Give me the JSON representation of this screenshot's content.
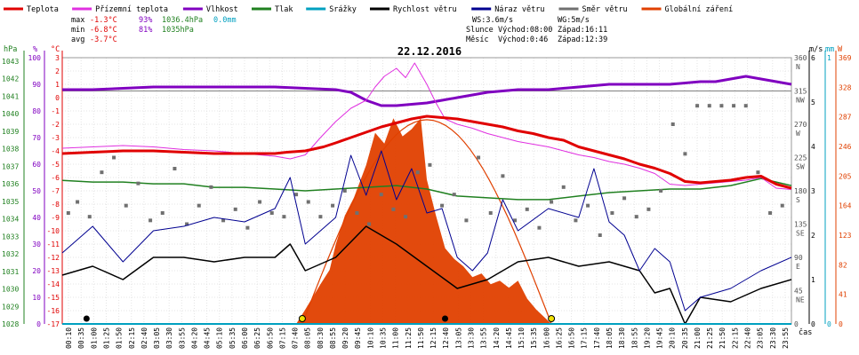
{
  "legend": [
    {
      "label": "Teplota",
      "color": "#e00000"
    },
    {
      "label": "Přízemní teplota",
      "color": "#e030e0"
    },
    {
      "label": "Vlhkost",
      "color": "#8000c0"
    },
    {
      "label": "Tlak",
      "color": "#208020"
    },
    {
      "label": "Srážky",
      "color": "#00a0c0"
    },
    {
      "label": "Rychlost větru",
      "color": "#000000"
    },
    {
      "label": "Náraz větru",
      "color": "#000090"
    },
    {
      "label": "Směr větru",
      "color": "#707070"
    },
    {
      "label": "Globální záření",
      "color": "#e04000"
    }
  ],
  "stats": {
    "max_label": "max",
    "max_temp": "-1.3°C",
    "max_hum": "93%",
    "max_press": "1036.4hPa",
    "precip": "0.0mm",
    "min_label": "min",
    "min_temp": "-6.8°C",
    "min_hum": "81%",
    "min_press": "1035hPa",
    "avg_label": "avg",
    "avg_temp": "-3.7°C"
  },
  "wind_info": {
    "ws": "WS:3.6m/s",
    "wg": "WG:5m/s"
  },
  "sun_info": {
    "label": "Slunce",
    "rise": "Východ:08:00",
    "set": "Západ:16:11"
  },
  "moon_info": {
    "label": "Měsíc",
    "rise": "Východ:0:46",
    "set": "Západ:12:39"
  },
  "date": "22.12.2016",
  "left_axes": {
    "press_unit": "hPa",
    "hum_unit": "%",
    "temp_unit": "°C",
    "press_ticks": [
      "1043",
      "1042",
      "1041",
      "1040",
      "1039",
      "1038",
      "1037",
      "1036",
      "1035",
      "1034",
      "1033",
      "1032",
      "1031",
      "1030",
      "1029",
      "1028"
    ],
    "hum_ticks": [
      "100",
      "90",
      "80",
      "70",
      "60",
      "50",
      "40",
      "30",
      "20",
      "10",
      "0"
    ],
    "temp_ticks": [
      "3",
      "2",
      "1",
      "0",
      "-1",
      "-2",
      "-3",
      "-4",
      "-5",
      "-6",
      "-7",
      "-8",
      "-9",
      "-10",
      "-11",
      "-12",
      "-13",
      "-14",
      "-15",
      "-16",
      "-17"
    ]
  },
  "right_axes": {
    "deg_ticks": [
      "360",
      "315",
      "270",
      "225",
      "180",
      "135",
      "90",
      "45",
      "0"
    ],
    "dir_ticks": [
      "N",
      "NW",
      "W",
      "SW",
      "S",
      "SE",
      "E",
      "NE"
    ],
    "ms_unit": "m/s",
    "mm_unit": "mm",
    "w_unit": "W",
    "ms_ticks": [
      "6",
      "5",
      "4",
      "3",
      "2",
      "1",
      "0"
    ],
    "mm_ticks": [
      "1",
      "0"
    ],
    "w_ticks": [
      "369",
      "328",
      "287",
      "246",
      "205",
      "164",
      "123",
      "82",
      "41",
      "0"
    ],
    "time_label": "čas"
  },
  "chart_data": {
    "type": "line",
    "title": "22.12.2016",
    "x_unit": "time of day (hours)",
    "xlim": [
      0,
      24
    ],
    "x_ticks": [
      "00:10",
      "00:35",
      "01:00",
      "01:25",
      "01:50",
      "02:15",
      "02:40",
      "03:05",
      "03:30",
      "03:55",
      "04:20",
      "04:45",
      "05:10",
      "05:35",
      "06:00",
      "06:25",
      "06:50",
      "07:15",
      "07:40",
      "08:05",
      "08:30",
      "08:55",
      "09:20",
      "09:45",
      "10:10",
      "10:35",
      "11:00",
      "11:25",
      "11:50",
      "12:15",
      "12:40",
      "13:05",
      "13:30",
      "13:55",
      "14:20",
      "14:45",
      "15:10",
      "15:35",
      "16:00",
      "16:25",
      "16:50",
      "17:15",
      "17:40",
      "18:05",
      "18:30",
      "18:55",
      "19:20",
      "19:45",
      "20:10",
      "20:35",
      "21:00",
      "21:25",
      "21:50",
      "22:15",
      "22:40",
      "23:05",
      "23:30",
      "23:55"
    ],
    "temp_ylim": [
      -17,
      3
    ],
    "press_ylim": [
      1028,
      1043.2
    ],
    "hum_ylim": [
      0,
      100
    ],
    "wind_ylim": [
      0,
      6
    ],
    "dir_ylim": [
      0,
      360
    ],
    "rad_ylim": [
      0,
      369
    ],
    "series": [
      {
        "name": "Teplota",
        "axis": "temp",
        "color": "#e00000",
        "width": 3,
        "x": [
          0,
          1,
          2,
          3,
          4,
          5,
          6,
          7,
          7.4,
          8,
          8.6,
          9,
          9.5,
          10,
          10.5,
          11,
          11.5,
          12,
          12.5,
          13,
          13.5,
          14,
          14.5,
          15,
          15.5,
          16,
          16.5,
          17,
          17.5,
          18,
          18.5,
          19,
          19.5,
          20,
          20.5,
          21,
          21.5,
          22,
          22.5,
          23,
          23.5,
          24
        ],
        "y": [
          -4.2,
          -4.1,
          -4,
          -4,
          -4.1,
          -4.2,
          -4.2,
          -4.2,
          -4.1,
          -4,
          -3.7,
          -3.4,
          -3,
          -2.6,
          -2.2,
          -1.9,
          -1.6,
          -1.4,
          -1.5,
          -1.6,
          -1.8,
          -2,
          -2.2,
          -2.5,
          -2.7,
          -3,
          -3.2,
          -3.7,
          -4,
          -4.3,
          -4.6,
          -5,
          -5.3,
          -5.7,
          -6.3,
          -6.4,
          -6.3,
          -6.2,
          -6,
          -5.9,
          -6.5,
          -6.8
        ]
      },
      {
        "name": "Přízemní teplota",
        "axis": "temp",
        "color": "#e030e0",
        "width": 1,
        "x": [
          0,
          1,
          2,
          3,
          4,
          5,
          6,
          7,
          7.5,
          8,
          8.5,
          9,
          9.5,
          10,
          10.3,
          10.6,
          11,
          11.3,
          11.6,
          12,
          12.3,
          12.6,
          13,
          13.5,
          14,
          14.5,
          15,
          15.5,
          16,
          16.5,
          17,
          17.5,
          18,
          18.5,
          19,
          19.5,
          20,
          20.5,
          21,
          21.5,
          22,
          22.5,
          23,
          23.5,
          24
        ],
        "y": [
          -3.8,
          -3.7,
          -3.6,
          -3.7,
          -3.9,
          -4,
          -4.2,
          -4.4,
          -4.6,
          -4.3,
          -3,
          -1.8,
          -0.8,
          -0.2,
          0.8,
          1.6,
          2.2,
          1.5,
          2.6,
          1,
          -0.4,
          -1.6,
          -2,
          -2.3,
          -2.7,
          -3,
          -3.3,
          -3.5,
          -3.7,
          -4,
          -4.3,
          -4.5,
          -4.8,
          -5,
          -5.3,
          -5.7,
          -6.5,
          -6.6,
          -6.5,
          -6.4,
          -6.3,
          -6.2,
          -6,
          -6.8,
          -6.9
        ]
      },
      {
        "name": "Vlhkost",
        "axis": "hum",
        "color": "#8000c0",
        "width": 3,
        "x": [
          0,
          1,
          2,
          3,
          4,
          5,
          6,
          7,
          8,
          9,
          9.5,
          10,
          10.5,
          11,
          11.5,
          12,
          12.5,
          13,
          13.5,
          14,
          15,
          16,
          17,
          18,
          19,
          20,
          21,
          21.5,
          22,
          22.5,
          23,
          23.5,
          24
        ],
        "y": [
          88,
          88,
          88.5,
          89,
          89,
          89,
          89,
          89,
          88.5,
          88,
          87,
          84,
          82,
          82,
          82.5,
          83,
          84,
          85,
          86,
          87,
          88,
          88,
          89,
          90,
          90,
          90,
          91,
          91,
          92,
          93,
          92,
          91,
          90
        ]
      },
      {
        "name": "Tlak",
        "axis": "press",
        "color": "#208020",
        "width": 1.5,
        "x": [
          0,
          1,
          2,
          3,
          4,
          5,
          6,
          7,
          8,
          9,
          10,
          11,
          12,
          13,
          14,
          15,
          16,
          17,
          18,
          19,
          20,
          21,
          22,
          23,
          23.5,
          24
        ],
        "y": [
          1036.2,
          1036.1,
          1036.1,
          1036,
          1036,
          1035.8,
          1035.8,
          1035.7,
          1035.6,
          1035.7,
          1035.8,
          1035.9,
          1035.7,
          1035.3,
          1035.2,
          1035.1,
          1035.1,
          1035.3,
          1035.5,
          1035.6,
          1035.7,
          1035.7,
          1035.9,
          1036.3,
          1036.1,
          1035.9
        ]
      },
      {
        "name": "Rychlost větru",
        "axis": "wind",
        "color": "#000000",
        "width": 1.5,
        "x": [
          0,
          1,
          2,
          3,
          4,
          5,
          6,
          7,
          7.5,
          8,
          9,
          10,
          11,
          12,
          13,
          14,
          15,
          16,
          17,
          18,
          19,
          19.5,
          20,
          20.5,
          21,
          22,
          23,
          24
        ],
        "y": [
          1.1,
          1.3,
          1,
          1.5,
          1.5,
          1.4,
          1.5,
          1.5,
          1.8,
          1.2,
          1.5,
          2.2,
          1.8,
          1.3,
          0.8,
          1,
          1.4,
          1.5,
          1.3,
          1.4,
          1.2,
          0.7,
          0.8,
          0,
          0.6,
          0.5,
          0.8,
          1
        ]
      },
      {
        "name": "Náraz větru",
        "axis": "wind",
        "color": "#000090",
        "width": 1,
        "x": [
          0,
          1,
          2,
          3,
          4,
          5,
          6,
          7,
          7.5,
          8,
          9,
          9.5,
          10,
          10.5,
          11,
          11.5,
          12,
          12.5,
          13,
          13.5,
          14,
          14.5,
          15,
          16,
          17,
          17.5,
          18,
          18.5,
          19,
          19.5,
          20,
          20.5,
          21,
          22,
          23,
          24
        ],
        "y": [
          1.6,
          2.2,
          1.4,
          2.1,
          2.2,
          2.4,
          2.3,
          2.6,
          3.3,
          1.8,
          2.4,
          3.8,
          2.9,
          3.9,
          2.8,
          3.5,
          2.5,
          2.6,
          1.5,
          1.2,
          1.6,
          2.8,
          2.1,
          2.6,
          2.4,
          3.5,
          2.3,
          2,
          1.2,
          1.7,
          1.4,
          0.3,
          0.6,
          0.8,
          1.2,
          1.5
        ]
      },
      {
        "name": "Směr větru",
        "axis": "dir",
        "color": "#707070",
        "kind": "points",
        "x": [
          0.2,
          0.5,
          0.9,
          1.3,
          1.7,
          2.1,
          2.5,
          2.9,
          3.3,
          3.7,
          4.1,
          4.5,
          4.9,
          5.3,
          5.7,
          6.1,
          6.5,
          6.9,
          7.3,
          7.7,
          8.1,
          8.5,
          8.9,
          9.3,
          9.7,
          10.1,
          10.5,
          10.9,
          11.3,
          11.7,
          12.1,
          12.5,
          12.9,
          13.3,
          13.7,
          14.1,
          14.5,
          14.9,
          15.3,
          15.7,
          16.1,
          16.5,
          16.9,
          17.3,
          17.7,
          18.1,
          18.5,
          18.9,
          19.3,
          19.7,
          20.1,
          20.5,
          20.9,
          21.3,
          21.7,
          22.1,
          22.5,
          22.9,
          23.3,
          23.7
        ],
        "y": [
          150,
          165,
          145,
          205,
          225,
          160,
          190,
          140,
          150,
          210,
          135,
          160,
          185,
          140,
          155,
          130,
          165,
          150,
          145,
          175,
          165,
          145,
          160,
          180,
          150,
          135,
          175,
          155,
          145,
          205,
          215,
          160,
          175,
          140,
          225,
          150,
          200,
          140,
          155,
          130,
          165,
          185,
          140,
          160,
          120,
          150,
          170,
          145,
          155,
          180,
          270,
          230,
          295,
          295,
          295,
          295,
          295,
          205,
          150,
          160
        ]
      },
      {
        "name": "Globální záření",
        "axis": "rad",
        "color": "#e04000",
        "kind": "area",
        "x": [
          7.7,
          8,
          8.5,
          8.8,
          9,
          9.3,
          9.6,
          10,
          10.3,
          10.6,
          10.9,
          11.2,
          11.5,
          11.8,
          12,
          12.3,
          12.6,
          12.9,
          13.2,
          13.5,
          13.8,
          14.1,
          14.4,
          14.7,
          15,
          15.3,
          15.6,
          15.9,
          16.1
        ],
        "y": [
          0,
          20,
          55,
          75,
          110,
          150,
          175,
          220,
          265,
          250,
          285,
          260,
          270,
          285,
          200,
          150,
          105,
          90,
          80,
          65,
          70,
          55,
          60,
          50,
          60,
          35,
          20,
          8,
          0
        ]
      }
    ],
    "solar_curve": {
      "name": "theoretical solar radiation",
      "color": "#e04000",
      "rise": 7.9,
      "set": 16.1,
      "peak": 283
    },
    "sun_markers": [
      {
        "time": 7.9,
        "color": "#f0e000"
      },
      {
        "time": 16.1,
        "color": "#f0e000"
      }
    ],
    "moon_markers": [
      {
        "time": 0.8,
        "color": "#000000"
      },
      {
        "time": 12.6,
        "color": "#000000"
      }
    ],
    "grid": true
  }
}
